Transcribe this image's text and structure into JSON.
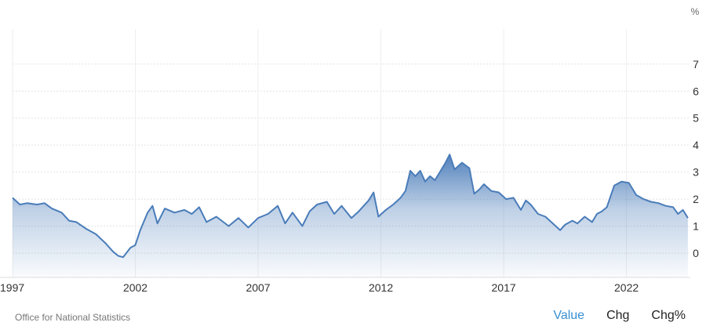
{
  "chart_data": {
    "type": "area",
    "unit_label": "%",
    "source": "Office for National Statistics",
    "x_tick_labels": [
      "1997",
      "2002",
      "2007",
      "2012",
      "2017",
      "2022"
    ],
    "x_ticks": [
      1997,
      2002,
      2007,
      2012,
      2017,
      2022
    ],
    "y_ticks": [
      0,
      1,
      2,
      3,
      4,
      5,
      6,
      7
    ],
    "xlim": [
      1997,
      2024.6
    ],
    "ylim": [
      -0.9,
      8.3
    ],
    "grid": true,
    "line_color": "#4a7cb9",
    "series": [
      {
        "points": [
          [
            1997.0,
            2.05
          ],
          [
            1997.3,
            1.8
          ],
          [
            1997.6,
            1.85
          ],
          [
            1998.0,
            1.8
          ],
          [
            1998.3,
            1.85
          ],
          [
            1998.6,
            1.65
          ],
          [
            1999.0,
            1.5
          ],
          [
            1999.3,
            1.2
          ],
          [
            1999.6,
            1.15
          ],
          [
            2000.0,
            0.9
          ],
          [
            2000.4,
            0.7
          ],
          [
            2000.8,
            0.35
          ],
          [
            2001.1,
            0.05
          ],
          [
            2001.3,
            -0.1
          ],
          [
            2001.5,
            -0.15
          ],
          [
            2001.8,
            0.2
          ],
          [
            2002.0,
            0.3
          ],
          [
            2002.2,
            0.85
          ],
          [
            2002.5,
            1.5
          ],
          [
            2002.7,
            1.75
          ],
          [
            2002.9,
            1.1
          ],
          [
            2003.2,
            1.65
          ],
          [
            2003.6,
            1.5
          ],
          [
            2004.0,
            1.6
          ],
          [
            2004.3,
            1.45
          ],
          [
            2004.6,
            1.7
          ],
          [
            2004.9,
            1.15
          ],
          [
            2005.3,
            1.35
          ],
          [
            2005.8,
            1.0
          ],
          [
            2006.2,
            1.3
          ],
          [
            2006.6,
            0.95
          ],
          [
            2007.0,
            1.3
          ],
          [
            2007.4,
            1.45
          ],
          [
            2007.8,
            1.75
          ],
          [
            2008.1,
            1.1
          ],
          [
            2008.4,
            1.5
          ],
          [
            2008.8,
            1.0
          ],
          [
            2009.1,
            1.55
          ],
          [
            2009.4,
            1.8
          ],
          [
            2009.8,
            1.9
          ],
          [
            2010.1,
            1.45
          ],
          [
            2010.4,
            1.75
          ],
          [
            2010.8,
            1.3
          ],
          [
            2011.1,
            1.55
          ],
          [
            2011.5,
            1.95
          ],
          [
            2011.7,
            2.25
          ],
          [
            2011.9,
            1.35
          ],
          [
            2012.2,
            1.6
          ],
          [
            2012.5,
            1.8
          ],
          [
            2012.8,
            2.05
          ],
          [
            2013.0,
            2.3
          ],
          [
            2013.2,
            3.05
          ],
          [
            2013.4,
            2.85
          ],
          [
            2013.6,
            3.05
          ],
          [
            2013.8,
            2.65
          ],
          [
            2014.0,
            2.85
          ],
          [
            2014.2,
            2.7
          ],
          [
            2014.6,
            3.3
          ],
          [
            2014.8,
            3.65
          ],
          [
            2015.0,
            3.1
          ],
          [
            2015.3,
            3.35
          ],
          [
            2015.6,
            3.15
          ],
          [
            2015.8,
            2.2
          ],
          [
            2016.0,
            2.35
          ],
          [
            2016.2,
            2.55
          ],
          [
            2016.5,
            2.3
          ],
          [
            2016.8,
            2.25
          ],
          [
            2017.1,
            2.0
          ],
          [
            2017.4,
            2.05
          ],
          [
            2017.7,
            1.6
          ],
          [
            2017.9,
            1.95
          ],
          [
            2018.1,
            1.8
          ],
          [
            2018.4,
            1.45
          ],
          [
            2018.7,
            1.35
          ],
          [
            2019.0,
            1.1
          ],
          [
            2019.3,
            0.85
          ],
          [
            2019.5,
            1.05
          ],
          [
            2019.8,
            1.2
          ],
          [
            2020.0,
            1.1
          ],
          [
            2020.3,
            1.35
          ],
          [
            2020.6,
            1.15
          ],
          [
            2020.8,
            1.45
          ],
          [
            2021.0,
            1.55
          ],
          [
            2021.2,
            1.7
          ],
          [
            2021.5,
            2.5
          ],
          [
            2021.8,
            2.65
          ],
          [
            2022.1,
            2.6
          ],
          [
            2022.4,
            2.15
          ],
          [
            2022.7,
            2.0
          ],
          [
            2023.0,
            1.9
          ],
          [
            2023.3,
            1.85
          ],
          [
            2023.6,
            1.75
          ],
          [
            2023.9,
            1.7
          ],
          [
            2024.1,
            1.45
          ],
          [
            2024.3,
            1.6
          ],
          [
            2024.5,
            1.3
          ]
        ]
      }
    ]
  },
  "legend_tabs": {
    "value": "Value",
    "chg": "Chg",
    "chg_pct": "Chg%"
  }
}
